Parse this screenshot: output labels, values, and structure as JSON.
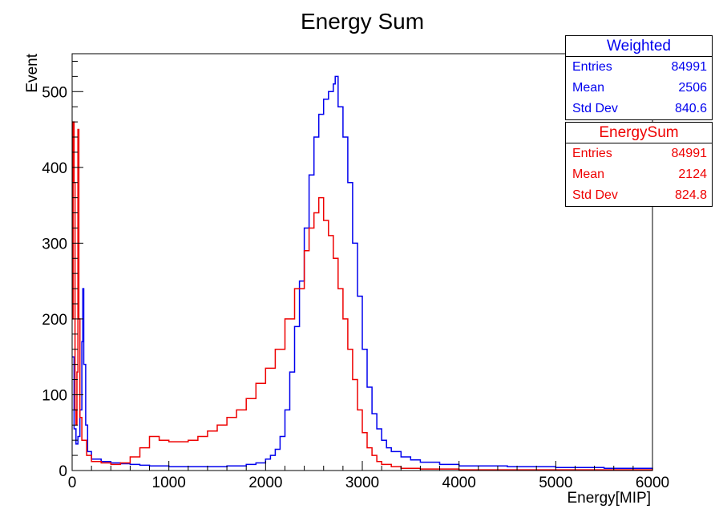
{
  "chart_data": {
    "type": "line",
    "title": "Energy Sum",
    "xlabel": "Energy[MIP]",
    "ylabel": "Event",
    "xlim": [
      0,
      6000
    ],
    "ylim": [
      0,
      550
    ],
    "x_ticks": [
      "0",
      "1000",
      "2000",
      "3000",
      "4000",
      "5000",
      "6000"
    ],
    "y_ticks": [
      "0",
      "100",
      "200",
      "300",
      "400",
      "500"
    ],
    "grid": false,
    "series": [
      {
        "name": "Weighted",
        "color": "#0000ee",
        "x": [
          0,
          20,
          40,
          60,
          80,
          100,
          110,
          120,
          140,
          160,
          200,
          300,
          400,
          500,
          600,
          700,
          800,
          900,
          1000,
          1100,
          1200,
          1300,
          1400,
          1500,
          1600,
          1700,
          1800,
          1900,
          2000,
          2050,
          2100,
          2150,
          2200,
          2250,
          2300,
          2350,
          2400,
          2450,
          2500,
          2550,
          2600,
          2650,
          2700,
          2720,
          2750,
          2800,
          2850,
          2900,
          2950,
          3000,
          3050,
          3100,
          3150,
          3200,
          3250,
          3300,
          3400,
          3500,
          3600,
          3800,
          4000,
          4500,
          5000,
          5500,
          6000
        ],
        "y": [
          150,
          55,
          35,
          45,
          80,
          170,
          240,
          140,
          60,
          25,
          15,
          12,
          10,
          9,
          8,
          7,
          6,
          6,
          5,
          5,
          5,
          5,
          5,
          5,
          6,
          6,
          8,
          10,
          15,
          20,
          28,
          45,
          80,
          130,
          190,
          250,
          320,
          390,
          440,
          470,
          490,
          500,
          510,
          520,
          480,
          440,
          380,
          300,
          230,
          160,
          110,
          75,
          55,
          40,
          30,
          25,
          18,
          14,
          11,
          8,
          6,
          5,
          4,
          3,
          2
        ]
      },
      {
        "name": "EnergySum",
        "color": "#ee0000",
        "x": [
          0,
          10,
          20,
          30,
          40,
          50,
          60,
          70,
          80,
          100,
          150,
          200,
          300,
          400,
          500,
          600,
          700,
          800,
          900,
          1000,
          1100,
          1200,
          1300,
          1400,
          1500,
          1600,
          1700,
          1800,
          1900,
          2000,
          2100,
          2200,
          2300,
          2400,
          2450,
          2500,
          2550,
          2600,
          2650,
          2700,
          2750,
          2800,
          2850,
          2900,
          2950,
          3000,
          3050,
          3100,
          3150,
          3200,
          3300,
          3400,
          3600,
          4000,
          5000,
          6000
        ],
        "y": [
          200,
          460,
          380,
          80,
          60,
          130,
          450,
          200,
          70,
          40,
          20,
          12,
          10,
          8,
          10,
          18,
          30,
          45,
          40,
          38,
          38,
          40,
          45,
          52,
          60,
          70,
          80,
          95,
          115,
          135,
          160,
          200,
          240,
          290,
          320,
          340,
          360,
          330,
          310,
          280,
          240,
          200,
          160,
          120,
          80,
          50,
          30,
          20,
          12,
          8,
          5,
          3,
          2,
          1,
          1,
          0
        ]
      }
    ],
    "stats": [
      {
        "title": "Weighted",
        "color": "#0000ee",
        "rows": [
          {
            "label": "Entries",
            "value": "84991"
          },
          {
            "label": "Mean",
            "value": "2506"
          },
          {
            "label": "Std Dev",
            "value": "840.6"
          }
        ]
      },
      {
        "title": "EnergySum",
        "color": "#ee0000",
        "rows": [
          {
            "label": "Entries",
            "value": "84991"
          },
          {
            "label": "Mean",
            "value": "2124"
          },
          {
            "label": "Std Dev",
            "value": "824.8"
          }
        ]
      }
    ]
  }
}
